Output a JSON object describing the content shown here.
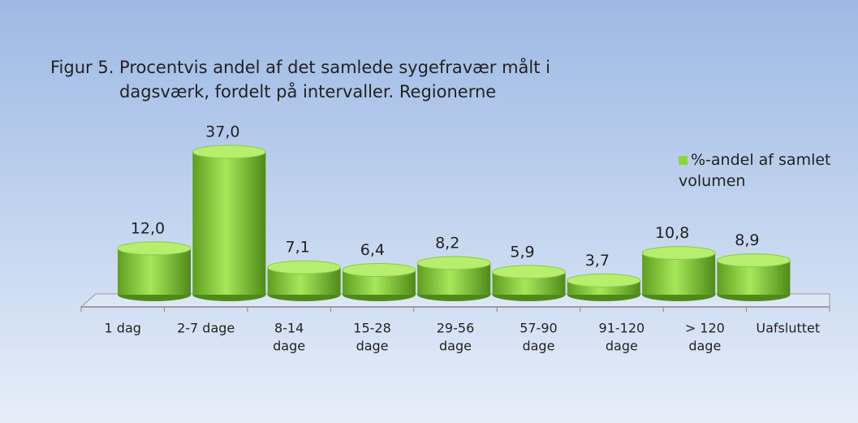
{
  "chart_data": {
    "type": "bar",
    "title": [
      "Figur 5. Procentvis andel af det samlede sygefravær målt i",
      "dagsværk, fordelt på intervaller.  Regionerne"
    ],
    "categories": [
      [
        "1 dag"
      ],
      [
        "2-7 dage"
      ],
      [
        "8-14",
        "dage"
      ],
      [
        "15-28",
        "dage"
      ],
      [
        "29-56",
        "dage"
      ],
      [
        "57-90",
        "dage"
      ],
      [
        "91-120",
        "dage"
      ],
      [
        "> 120",
        "dage"
      ],
      [
        "Uafsluttet"
      ]
    ],
    "series": [
      {
        "name": "%-andel af samlet volumen",
        "color": "#8cd63c",
        "values": [
          12.0,
          37.0,
          7.1,
          6.4,
          8.2,
          5.9,
          3.7,
          10.8,
          8.9
        ],
        "value_labels": [
          "12,0",
          "37,0",
          "7,1",
          "6,4",
          "8,2",
          "5,9",
          "3,7",
          "10,8",
          "8,9"
        ]
      }
    ],
    "legend": "top-right"
  }
}
